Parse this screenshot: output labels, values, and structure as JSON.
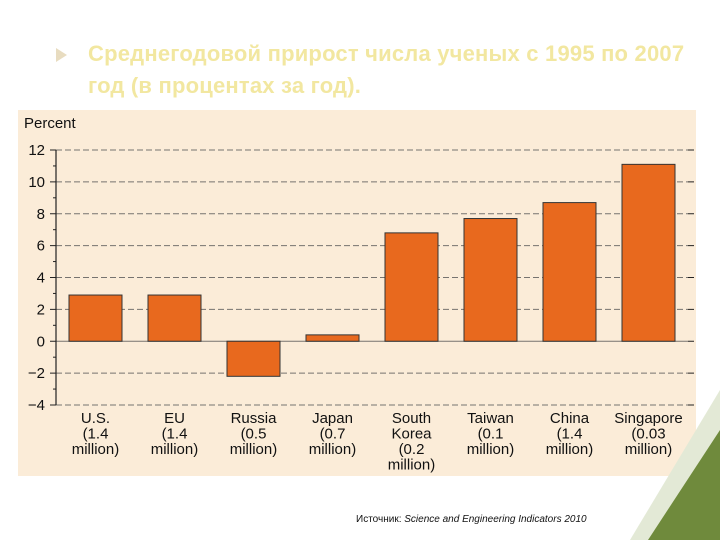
{
  "slide": {
    "title": "Среднегодовой прирост числа ученых с 1995 по 2007 год (в процентах за год).",
    "source_prefix": "Источник: ",
    "source_name": "Science and Engineering Indicators 2010"
  },
  "colors": {
    "bar": "#e8691e",
    "panel": "#fbecd8",
    "title": "#f2e7a0",
    "corner_accent": "#6f8a3c"
  },
  "chart_data": {
    "type": "bar",
    "ylabel": "Percent",
    "ylim": [
      -4,
      12
    ],
    "yticks": [
      12,
      10,
      8,
      6,
      4,
      2,
      0,
      -2,
      -4
    ],
    "ytick_labels": [
      "12",
      "10",
      "8",
      "6",
      "4",
      "2",
      "0",
      "−2",
      "−4"
    ],
    "grid": true,
    "categories": [
      [
        "U.S.",
        "(1.4",
        "million)"
      ],
      [
        "EU",
        "(1.4",
        "million)"
      ],
      [
        "Russia",
        "(0.5",
        "million)"
      ],
      [
        "Japan",
        "(0.7",
        "million)"
      ],
      [
        "South",
        "Korea",
        "(0.2",
        "million)"
      ],
      [
        "Taiwan",
        "(0.1",
        "million)"
      ],
      [
        "China",
        "(1.4",
        "million)"
      ],
      [
        "Singapore",
        "(0.03",
        "million)"
      ]
    ],
    "values": [
      2.9,
      2.9,
      -2.2,
      0.4,
      6.8,
      7.7,
      8.7,
      11.1
    ]
  }
}
